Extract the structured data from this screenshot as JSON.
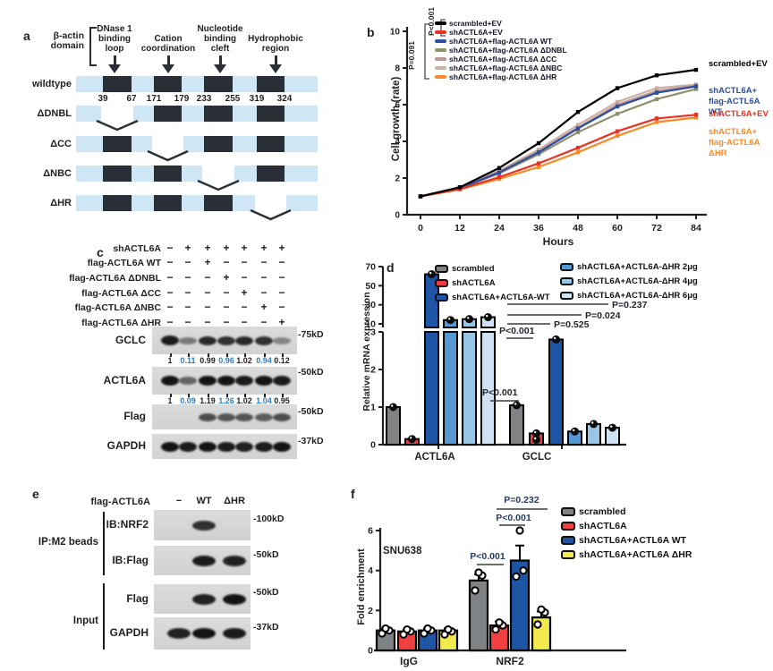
{
  "panels": {
    "a": {
      "letter": "a",
      "bracket_label": "β-actin\ndomain",
      "annotations": [
        {
          "lines": [
            "DNase 1",
            "binding",
            "loop"
          ]
        },
        {
          "lines": [
            "Cation",
            "coordination"
          ]
        },
        {
          "lines": [
            "Nucleotide",
            "binding",
            "cleft"
          ]
        },
        {
          "lines": [
            "Hydrophobic",
            "region"
          ]
        }
      ],
      "domain_numbers": [
        "39",
        "67",
        "171",
        "179",
        "233",
        "255",
        "319",
        "324"
      ],
      "rows": [
        {
          "label": "wildtype",
          "deleted": -1
        },
        {
          "label": "ΔDNBL",
          "deleted": 0
        },
        {
          "label": "ΔCC",
          "deleted": 1
        },
        {
          "label": "ΔNBC",
          "deleted": 2
        },
        {
          "label": "ΔHR",
          "deleted": 3
        }
      ],
      "colors": {
        "backbone": "#cfe6f5",
        "domain": "#2a2e37"
      }
    },
    "b": {
      "letter": "b"
    },
    "c": {
      "letter": "c",
      "conditions": [
        {
          "label": "shACTL6A",
          "values": [
            "−",
            "+",
            "+",
            "+",
            "+",
            "+",
            "+"
          ]
        },
        {
          "label": "flag-ACTL6A WT",
          "values": [
            "−",
            "−",
            "+",
            "−",
            "−",
            "−",
            "−"
          ]
        },
        {
          "label": "flag-ACTL6A ΔDNBL",
          "values": [
            "−",
            "−",
            "−",
            "+",
            "−",
            "−",
            "−"
          ]
        },
        {
          "label": "flag-ACTL6A ΔCC",
          "values": [
            "−",
            "−",
            "−",
            "−",
            "+",
            "−",
            "−"
          ]
        },
        {
          "label": "flag-ACTL6A ΔNBC",
          "values": [
            "−",
            "−",
            "−",
            "−",
            "−",
            "+",
            "−"
          ]
        },
        {
          "label": "flag-ACTL6A ΔHR",
          "values": [
            "−",
            "−",
            "−",
            "−",
            "−",
            "−",
            "+"
          ]
        }
      ],
      "blots": [
        {
          "label": "GCLC",
          "marker": "-75kD",
          "bands": [
            0.95,
            0.3,
            0.85,
            0.8,
            0.85,
            0.8,
            0.22
          ],
          "quant": [
            {
              "t": "1",
              "c": "#231f20"
            },
            {
              "t": "0.11",
              "c": "#2d7dc2"
            },
            {
              "t": "0.99",
              "c": "#231f20"
            },
            {
              "t": "0.96",
              "c": "#2d7dc2"
            },
            {
              "t": "1.02",
              "c": "#231f20"
            },
            {
              "t": "0.94",
              "c": "#2d7dc2"
            },
            {
              "t": "0.12",
              "c": "#231f20"
            }
          ]
        },
        {
          "label": "ACTL6A",
          "marker": "-50kD",
          "bands": [
            1,
            0.45,
            1,
            1,
            0.95,
            1,
            0.95
          ],
          "quant": [
            {
              "t": "1",
              "c": "#231f20"
            },
            {
              "t": "0.09",
              "c": "#2d7dc2"
            },
            {
              "t": "1.19",
              "c": "#231f20"
            },
            {
              "t": "1.26",
              "c": "#2d7dc2"
            },
            {
              "t": "1.02",
              "c": "#231f20"
            },
            {
              "t": "1.04",
              "c": "#2d7dc2"
            },
            {
              "t": "0.95",
              "c": "#231f20"
            }
          ]
        },
        {
          "label": "Flag",
          "marker": "-50kD",
          "bands": [
            0,
            0,
            0.6,
            0.55,
            0.55,
            0.5,
            0.6
          ],
          "quant": null
        },
        {
          "label": "GAPDH",
          "marker": "-37kD",
          "bands": [
            1,
            0.95,
            1,
            0.95,
            0.9,
            0.95,
            1
          ],
          "quant": null
        }
      ]
    },
    "d": {
      "letter": "d"
    },
    "e": {
      "letter": "e",
      "header": "flag-ACTL6A",
      "lanes": [
        "−",
        "WT",
        "ΔHR"
      ],
      "groups": [
        {
          "bracket": "IP:M2 beads",
          "blots": [
            {
              "label": "IB:NRF2",
              "marker": "-100kD",
              "bands": [
                0,
                0.8,
                0
              ]
            },
            {
              "label": "IB:Flag",
              "marker": "-50kD",
              "bands": [
                0,
                0.95,
                0.9
              ]
            }
          ]
        },
        {
          "bracket": "Input",
          "blots": [
            {
              "label": "Flag",
              "marker": "-50kD",
              "bands": [
                0,
                0.9,
                1
              ]
            },
            {
              "label": "GAPDH",
              "marker": "-37kD",
              "bands": [
                0.9,
                1,
                0.95
              ]
            }
          ]
        }
      ]
    },
    "f": {
      "letter": "f"
    }
  },
  "chart_data": [
    {
      "id": "b",
      "type": "line",
      "xlabel": "Hours",
      "ylabel": "Cell growth (rate)",
      "x": [
        0,
        12,
        24,
        36,
        48,
        60,
        72,
        84
      ],
      "ylim": [
        0,
        10
      ],
      "yticks": [
        0,
        2,
        4,
        6,
        8,
        10
      ],
      "legend_position": "top-left-inside",
      "series": [
        {
          "name": "scrambled+EV",
          "color": "#000000",
          "values": [
            1,
            1.5,
            2.55,
            3.9,
            5.6,
            6.9,
            7.6,
            7.9
          ]
        },
        {
          "name": "shACTL6A+EV",
          "color": "#e93223",
          "values": [
            1,
            1.4,
            2.05,
            2.8,
            3.65,
            4.55,
            5.25,
            5.45
          ]
        },
        {
          "name": "shACTL6A+flag-ACTL6A WT",
          "color": "#2c4da0",
          "values": [
            1,
            1.45,
            2.3,
            3.4,
            4.7,
            5.9,
            6.65,
            7.0
          ]
        },
        {
          "name": "shACTL6A+flag-ACTL6A ΔDNBL",
          "color": "#90906c",
          "values": [
            1,
            1.45,
            2.25,
            3.3,
            4.5,
            5.5,
            6.3,
            6.85
          ]
        },
        {
          "name": "shACTL6A+flag-ACTL6A ΔCC",
          "color": "#bb9697",
          "values": [
            1,
            1.48,
            2.35,
            3.45,
            4.75,
            6.0,
            6.75,
            7.05
          ]
        },
        {
          "name": "shACTL6A+flag-ACTL6A ΔNBC",
          "color": "#cab3a5",
          "values": [
            1,
            1.5,
            2.4,
            3.55,
            4.9,
            6.15,
            6.9,
            7.1
          ]
        },
        {
          "name": "shACTL6A+flag-ACTL6A ΔHR",
          "color": "#f68b28",
          "values": [
            1,
            1.38,
            1.95,
            2.6,
            3.4,
            4.3,
            5.05,
            5.3
          ]
        }
      ],
      "pvalues": [
        {
          "label": "P<0.001"
        },
        {
          "label": "P=0.091"
        }
      ],
      "right_labels": [
        {
          "lines": [
            "scrambled+EV"
          ],
          "color": "#000000"
        },
        {
          "lines": [
            "shACTL6A+",
            "flag-ACTL6A WT"
          ],
          "color": "#2c4da0"
        },
        {
          "lines": [
            "shACTL6A+EV"
          ],
          "color": "#e93223"
        },
        {
          "lines": [
            "shACTL6A+",
            "flag-ACTL6A ΔHR"
          ],
          "color": "#f68b28"
        }
      ]
    },
    {
      "id": "d",
      "type": "bar",
      "ylabel": "Relative mRNA expression",
      "categories": [
        "ACTL6A",
        "GCLC"
      ],
      "axis_break": {
        "upper_ticks": [
          70,
          50,
          30,
          10
        ],
        "lower_ticks": [
          3,
          2,
          1,
          0
        ]
      },
      "series": [
        {
          "name": "scrambled",
          "color": "#7f8386",
          "values": [
            1.0,
            1.05
          ]
        },
        {
          "name": "shACTL6A",
          "color": "#ee3d42",
          "values": [
            0.15,
            0.3
          ]
        },
        {
          "name": "shACTL6A+ACTL6A-WT",
          "color": "#1f55a5",
          "values": [
            62,
            2.8
          ]
        },
        {
          "name": "shACTL6A+ACTL6A-ΔHR 2μg",
          "color": "#5598d2",
          "values": [
            14,
            0.35
          ]
        },
        {
          "name": "shACTL6A+ACTL6A-ΔHR 4μg",
          "color": "#9ac6e6",
          "values": [
            15,
            0.55
          ]
        },
        {
          "name": "shACTL6A+ACTL6A-ΔHR 6μg",
          "color": "#cfe3f4",
          "values": [
            17,
            0.45
          ]
        }
      ],
      "pvalues": [
        {
          "label": "P=0.237"
        },
        {
          "label": "P=0.024"
        },
        {
          "label": "P=0.525"
        },
        {
          "label": "P<0.001"
        },
        {
          "label": "P<0.001"
        }
      ]
    },
    {
      "id": "f",
      "type": "bar",
      "ylabel": "Fold enrichment",
      "annotation": "SNU638",
      "categories": [
        "IgG",
        "NRF2"
      ],
      "ylim": [
        0,
        6
      ],
      "yticks": [
        0,
        2,
        4,
        6
      ],
      "series": [
        {
          "name": "scrambled",
          "color": "#7f8386",
          "values": [
            1.0,
            3.5
          ],
          "errors": [
            0.1,
            0.3
          ],
          "dots": [
            [
              0.85,
              1.0,
              1.1
            ],
            [
              3.0,
              3.75,
              3.9
            ]
          ]
        },
        {
          "name": "shACTL6A",
          "color": "#f14040",
          "values": [
            0.95,
            1.25
          ],
          "errors": [
            0.1,
            0.2
          ],
          "dots": [
            [
              0.8,
              0.95,
              1.05
            ],
            [
              1.05,
              1.25,
              1.4
            ]
          ]
        },
        {
          "name": "shACTL6A+ACTL6A WT",
          "color": "#1f55a5",
          "values": [
            1.0,
            4.5
          ],
          "errors": [
            0.1,
            0.75
          ],
          "dots": [
            [
              0.85,
              1.0,
              1.1
            ],
            [
              3.7,
              4.0,
              6.0
            ]
          ]
        },
        {
          "name": "shACTL6A+ACTL6A ΔHR",
          "color": "#f2e94e",
          "values": [
            1.0,
            1.65
          ],
          "errors": [
            0.1,
            0.3
          ],
          "dots": [
            [
              0.8,
              0.95,
              1.05
            ],
            [
              1.3,
              1.9,
              2.05
            ]
          ]
        }
      ],
      "pvalues": [
        {
          "label": "P=0.232"
        },
        {
          "label": "P<0.001"
        },
        {
          "label": "P<0.001"
        }
      ]
    }
  ]
}
